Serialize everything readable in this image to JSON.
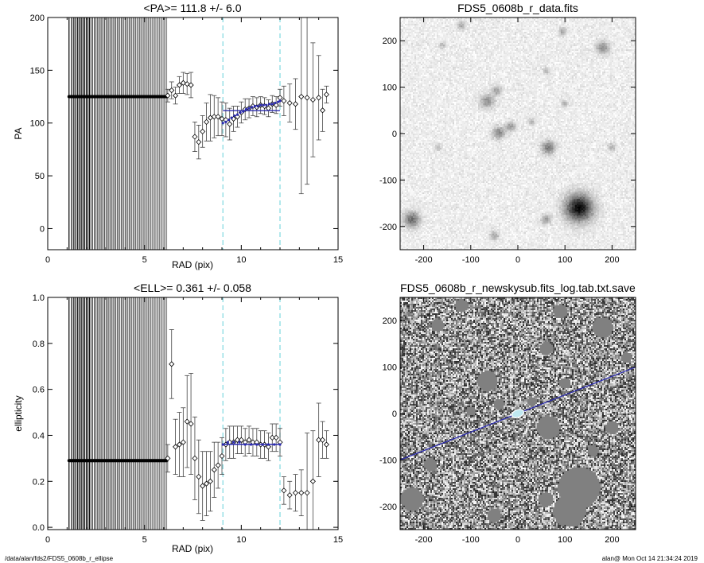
{
  "footer": {
    "left": "/data/alan/fds2/FDS5_0608b_r_ellipse",
    "right": "alan@  Mon Oct 14 21:34:24 2019"
  },
  "colors": {
    "fit_line": "#2b2bb0",
    "marker_line": "#7fd8e0",
    "error_bar": "#444444"
  },
  "chart_data": [
    {
      "id": "pa",
      "type": "scatter",
      "title": "<PA>= 111.8 +/-   6.0",
      "xlabel": "RAD (pix)",
      "ylabel": "PA",
      "xlim": [
        0,
        15
      ],
      "ylim": [
        -20,
        200
      ],
      "xticks": [
        0,
        5,
        10,
        15
      ],
      "yticks": [
        0,
        50,
        100,
        150,
        200
      ],
      "dense_region": {
        "x_start": 1.1,
        "x_end": 6.15,
        "y": 125
      },
      "vlines": [
        9.05,
        12.0
      ],
      "fit": {
        "x": [
          9.05,
          12.0
        ],
        "y": 111.8
      },
      "x": [
        6.2,
        6.4,
        6.6,
        6.8,
        7.0,
        7.2,
        7.4,
        7.6,
        7.8,
        8.0,
        8.2,
        8.4,
        8.6,
        8.8,
        9.0,
        9.2,
        9.4,
        9.6,
        9.8,
        10.0,
        10.2,
        10.4,
        10.6,
        10.8,
        11.0,
        11.2,
        11.4,
        11.6,
        11.8,
        12.0,
        12.2,
        12.5,
        12.8,
        13.1,
        13.4,
        13.7,
        14.0,
        14.2,
        14.4
      ],
      "y": [
        126,
        131,
        126,
        136,
        138,
        137,
        136,
        87,
        82,
        92,
        101,
        105,
        106,
        106,
        104,
        103,
        99,
        104,
        106,
        110,
        113,
        114,
        116,
        115,
        117,
        116,
        114,
        118,
        117,
        124,
        121,
        119,
        118,
        125,
        124,
        122,
        124,
        112,
        127
      ],
      "err": [
        6,
        8,
        8,
        8,
        10,
        10,
        12,
        14,
        16,
        15,
        18,
        22,
        20,
        18,
        16,
        16,
        15,
        12,
        10,
        10,
        10,
        9,
        9,
        9,
        8,
        8,
        8,
        8,
        8,
        8,
        14,
        18,
        24,
        92,
        82,
        54,
        40,
        20,
        8
      ],
      "blue_x": [
        9.05,
        9.2,
        9.35,
        9.5,
        9.65,
        9.8,
        9.95,
        10.1,
        10.25,
        10.4,
        10.55,
        10.7,
        10.85,
        11.0,
        11.15,
        11.3,
        11.45,
        11.6,
        11.75,
        11.9,
        12.0
      ],
      "blue_y": [
        100,
        101,
        103,
        105,
        107,
        108,
        110,
        111,
        113,
        114,
        115,
        116,
        116,
        117,
        117,
        117,
        118,
        118,
        119,
        120,
        121
      ]
    },
    {
      "id": "ell",
      "type": "scatter",
      "title": "<ELL>= 0.361 +/-  0.058",
      "xlabel": "RAD (pix)",
      "ylabel": "ellipticity",
      "xlim": [
        0,
        15
      ],
      "ylim": [
        -0.01,
        1.0
      ],
      "xticks": [
        0,
        5,
        10,
        15
      ],
      "yticks": [
        0.0,
        0.2,
        0.4,
        0.6,
        0.8,
        1.0
      ],
      "ytick_labels": [
        "0.0",
        "0.2",
        "0.4",
        "0.6",
        "0.8",
        "1.0"
      ],
      "dense_region": {
        "x_start": 1.1,
        "x_end": 6.15,
        "y": 0.29
      },
      "vlines": [
        9.05,
        12.0
      ],
      "fit": {
        "x": [
          9.05,
          12.0
        ],
        "y": 0.361
      },
      "x": [
        6.2,
        6.4,
        6.6,
        6.8,
        7.0,
        7.2,
        7.4,
        7.6,
        7.8,
        8.0,
        8.2,
        8.4,
        8.6,
        8.8,
        9.0,
        9.2,
        9.4,
        9.6,
        9.8,
        10.0,
        10.2,
        10.4,
        10.6,
        10.8,
        11.0,
        11.2,
        11.4,
        11.6,
        11.8,
        12.0,
        12.2,
        12.5,
        12.8,
        13.1,
        13.4,
        13.7,
        14.0,
        14.2,
        14.4
      ],
      "y": [
        0.3,
        0.71,
        0.35,
        0.36,
        0.37,
        0.46,
        0.45,
        0.3,
        0.22,
        0.18,
        0.19,
        0.2,
        0.25,
        0.27,
        0.31,
        0.36,
        0.37,
        0.37,
        0.38,
        0.38,
        0.37,
        0.38,
        0.37,
        0.37,
        0.36,
        0.36,
        0.35,
        0.39,
        0.39,
        0.37,
        0.16,
        0.14,
        0.15,
        0.15,
        0.15,
        0.2,
        0.38,
        0.38,
        0.36
      ],
      "err": [
        0.06,
        0.15,
        0.12,
        0.14,
        0.15,
        0.2,
        0.22,
        0.18,
        0.16,
        0.15,
        0.14,
        0.13,
        0.12,
        0.1,
        0.08,
        0.07,
        0.07,
        0.07,
        0.06,
        0.06,
        0.06,
        0.06,
        0.06,
        0.06,
        0.06,
        0.06,
        0.06,
        0.06,
        0.06,
        0.06,
        0.06,
        0.06,
        0.08,
        0.1,
        0.26,
        0.22,
        0.16,
        0.08,
        0.06
      ],
      "blue_x": [
        9.05,
        9.3,
        9.6,
        9.9,
        10.2,
        10.5,
        10.8,
        11.1,
        11.4,
        11.7,
        12.0
      ],
      "blue_y": [
        0.36,
        0.37,
        0.37,
        0.37,
        0.36,
        0.36,
        0.36,
        0.36,
        0.36,
        0.36,
        0.36
      ]
    },
    {
      "id": "img1",
      "type": "heatmap",
      "title": "FDS5_0608b_r_data.fits",
      "xlim": [
        -250,
        250
      ],
      "ylim": [
        -250,
        250
      ],
      "xticks": [
        -200,
        -100,
        0,
        100,
        200
      ],
      "yticks": [
        -200,
        -100,
        0,
        100,
        200
      ],
      "colormap": "gray-inverted",
      "sources": [
        {
          "x": 130,
          "y": -160,
          "r": 20,
          "peak": 1.0
        },
        {
          "x": -225,
          "y": -185,
          "r": 12,
          "peak": 0.55
        },
        {
          "x": 65,
          "y": -30,
          "r": 10,
          "peak": 0.5
        },
        {
          "x": -40,
          "y": 2,
          "r": 9,
          "peak": 0.45
        },
        {
          "x": -15,
          "y": 15,
          "r": 7,
          "peak": 0.35
        },
        {
          "x": -65,
          "y": 70,
          "r": 10,
          "peak": 0.4
        },
        {
          "x": -45,
          "y": 92,
          "r": 7,
          "peak": 0.35
        },
        {
          "x": 180,
          "y": 185,
          "r": 10,
          "peak": 0.4
        },
        {
          "x": 95,
          "y": 220,
          "r": 6,
          "peak": 0.3
        },
        {
          "x": -120,
          "y": 232,
          "r": 6,
          "peak": 0.3
        },
        {
          "x": 60,
          "y": 135,
          "r": 5,
          "peak": 0.28
        },
        {
          "x": 100,
          "y": 65,
          "r": 5,
          "peak": 0.28
        },
        {
          "x": -50,
          "y": -220,
          "r": 7,
          "peak": 0.3
        },
        {
          "x": 60,
          "y": -185,
          "r": 7,
          "peak": 0.35
        },
        {
          "x": -160,
          "y": 190,
          "r": 5,
          "peak": 0.25
        },
        {
          "x": 200,
          "y": -30,
          "r": 6,
          "peak": 0.25
        },
        {
          "x": -170,
          "y": -30,
          "r": 5,
          "peak": 0.22
        },
        {
          "x": 30,
          "y": 25,
          "r": 5,
          "peak": 0.25
        }
      ]
    },
    {
      "id": "img2",
      "type": "heatmap",
      "title": "FDS5_0608b_r_newskysub.fits_log.tab.txt.save",
      "xlim": [
        -250,
        250
      ],
      "ylim": [
        -250,
        250
      ],
      "xticks": [
        -200,
        -100,
        0,
        100,
        200
      ],
      "yticks": [
        -200,
        -100,
        0,
        100,
        200
      ],
      "colormap": "gray",
      "pa_line": {
        "angle_deg": 111.8,
        "center": [
          0,
          0
        ]
      },
      "ellipse": {
        "x": 0,
        "y": 0,
        "a": 13,
        "b": 8
      },
      "masks": [
        {
          "x": 130,
          "y": -160,
          "r": 45
        },
        {
          "x": 110,
          "y": -210,
          "r": 35
        },
        {
          "x": -225,
          "y": -185,
          "r": 25
        },
        {
          "x": 65,
          "y": -30,
          "r": 25
        },
        {
          "x": -65,
          "y": 70,
          "r": 22
        },
        {
          "x": 180,
          "y": 185,
          "r": 22
        },
        {
          "x": 90,
          "y": 220,
          "r": 15
        },
        {
          "x": -120,
          "y": 232,
          "r": 14
        },
        {
          "x": 60,
          "y": -185,
          "r": 16
        },
        {
          "x": 200,
          "y": -30,
          "r": 14
        },
        {
          "x": -50,
          "y": -220,
          "r": 15
        },
        {
          "x": -170,
          "y": 190,
          "r": 14
        },
        {
          "x": 60,
          "y": 140,
          "r": 14
        },
        {
          "x": 100,
          "y": 65,
          "r": 12
        },
        {
          "x": 230,
          "y": 120,
          "r": 12
        },
        {
          "x": -100,
          "y": 5,
          "r": 10
        },
        {
          "x": -40,
          "y": 20,
          "r": 12
        },
        {
          "x": 30,
          "y": 25,
          "r": 10
        },
        {
          "x": -185,
          "y": -110,
          "r": 14
        },
        {
          "x": 160,
          "y": -80,
          "r": 12
        }
      ]
    }
  ]
}
